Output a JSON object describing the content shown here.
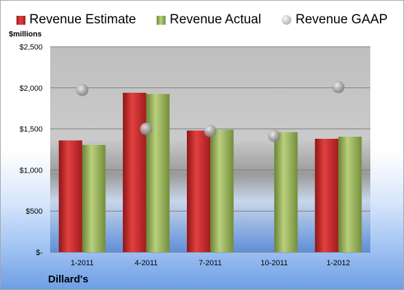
{
  "legend": {
    "estimate": "Revenue Estimate",
    "actual": "Revenue Actual",
    "gaap": "Revenue GAAP"
  },
  "units_label": "$millions",
  "company_label": "Dillard's",
  "chart_data": {
    "type": "bar",
    "categories": [
      "1-2011",
      "4-2011",
      "7-2011",
      "10-2011",
      "1-2012"
    ],
    "series": [
      {
        "name": "Revenue Estimate",
        "values": [
          1360,
          1940,
          1480,
          null,
          1380
        ],
        "color": "#c0272b"
      },
      {
        "name": "Revenue Actual",
        "values": [
          1305,
          1925,
          1490,
          1460,
          1405
        ],
        "color": "#9bbb59"
      },
      {
        "name": "Revenue GAAP",
        "values": [
          1975,
          1500,
          1475,
          1415,
          2010
        ],
        "color": "#a6a6a6",
        "marker": "circle"
      }
    ],
    "ylim": [
      0,
      2500
    ],
    "yticks": [
      0,
      500,
      1000,
      1500,
      2000,
      2500
    ],
    "ytick_labels": [
      "$-",
      "$500",
      "$1,000",
      "$1,500",
      "$2,000",
      "$2,500"
    ],
    "grid": true,
    "legend_position": "top"
  }
}
